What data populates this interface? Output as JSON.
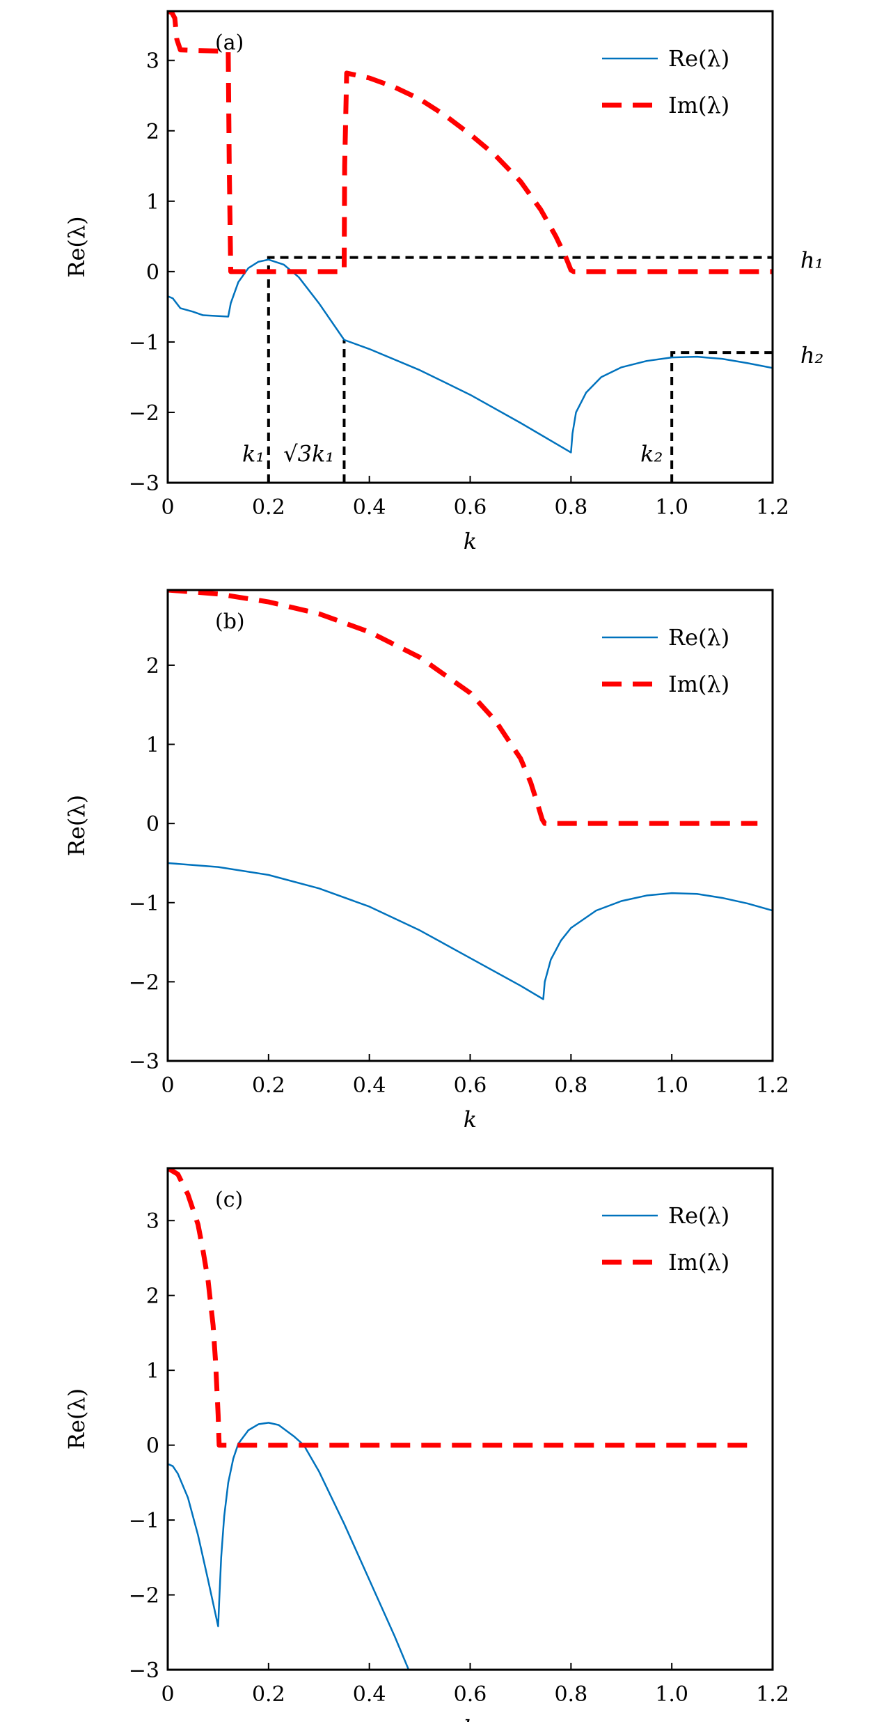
{
  "colors": {
    "re": "#0072bd",
    "im": "#ff0000",
    "guide": "#000000"
  },
  "chart_data": [
    {
      "type": "line",
      "panel_label": "(a)",
      "xlabel": "k",
      "ylabel": "Re(λ)",
      "xlim": [
        0,
        1.2
      ],
      "ylim": [
        -3,
        3.7
      ],
      "xticks": [
        "0",
        "0.2",
        "0.4",
        "0.6",
        "0.8",
        "1.0",
        "1.2"
      ],
      "yticks": [
        "−3",
        "−2",
        "−1",
        "0",
        "1",
        "2",
        "3"
      ],
      "legend": "top-right",
      "series": [
        {
          "name": "Re(λ)",
          "style": "solid",
          "x": [
            0,
            0.01,
            0.025,
            0.035,
            0.05,
            0.07,
            0.12,
            0.125,
            0.14,
            0.16,
            0.18,
            0.2,
            0.23,
            0.26,
            0.3,
            0.35,
            0.4,
            0.5,
            0.6,
            0.7,
            0.8,
            0.803,
            0.81,
            0.83,
            0.86,
            0.9,
            0.95,
            1.0,
            1.05,
            1.1,
            1.15,
            1.2
          ],
          "y": [
            -0.35,
            -0.38,
            -0.52,
            -0.54,
            -0.57,
            -0.62,
            -0.64,
            -0.45,
            -0.15,
            0.05,
            0.14,
            0.17,
            0.1,
            -0.08,
            -0.45,
            -0.97,
            -1.1,
            -1.4,
            -1.75,
            -2.15,
            -2.57,
            -2.3,
            -2.0,
            -1.72,
            -1.5,
            -1.36,
            -1.27,
            -1.22,
            -1.21,
            -1.24,
            -1.3,
            -1.37
          ]
        },
        {
          "name": "Im(λ)",
          "style": "dashed",
          "x": [
            0,
            0.008,
            0.014,
            0.018,
            0.025,
            0.06,
            0.12,
            0.122,
            0.125,
            0.16,
            0.35,
            0.351,
            0.355,
            0.4,
            0.45,
            0.5,
            0.55,
            0.6,
            0.65,
            0.7,
            0.74,
            0.77,
            0.79,
            0.8,
            0.805,
            1.2
          ],
          "y": [
            3.7,
            3.68,
            3.6,
            3.3,
            3.15,
            3.14,
            3.13,
            1.5,
            0,
            0,
            0,
            1.5,
            2.82,
            2.75,
            2.62,
            2.45,
            2.22,
            1.95,
            1.65,
            1.28,
            0.88,
            0.5,
            0.2,
            0.02,
            0,
            0
          ]
        }
      ],
      "guides": [
        {
          "x": [
            0.2,
            0.2,
            1.2
          ],
          "y": [
            -3,
            0.2,
            0.2
          ]
        },
        {
          "x": [
            0.35,
            0.35
          ],
          "y": [
            -3,
            -0.97
          ]
        },
        {
          "x": [
            1.0,
            1.0,
            1.2
          ],
          "y": [
            -3,
            -1.15,
            -1.15
          ]
        }
      ],
      "annotations": [
        {
          "text": "k₁",
          "x": 0.17,
          "y": -2.6
        },
        {
          "text": "√3k₁",
          "x": 0.28,
          "y": -2.6
        },
        {
          "text": "k₂",
          "x": 0.96,
          "y": -2.6
        },
        {
          "text": "h₁",
          "x": 1.255,
          "y": 0.15
        },
        {
          "text": "h₂",
          "x": 1.255,
          "y": -1.2
        }
      ]
    },
    {
      "type": "line",
      "panel_label": "(b)",
      "xlabel": "k",
      "ylabel": "Re(λ)",
      "xlim": [
        0,
        1.2
      ],
      "ylim": [
        -3,
        2.95
      ],
      "xticks": [
        "0",
        "0.2",
        "0.4",
        "0.6",
        "0.8",
        "1.0",
        "1.2"
      ],
      "yticks": [
        "−3",
        "−2",
        "−1",
        "0",
        "1",
        "2"
      ],
      "legend": "top-right",
      "series": [
        {
          "name": "Re(λ)",
          "style": "solid",
          "x": [
            0,
            0.1,
            0.2,
            0.3,
            0.4,
            0.5,
            0.6,
            0.7,
            0.745,
            0.748,
            0.76,
            0.78,
            0.8,
            0.85,
            0.9,
            0.95,
            1.0,
            1.05,
            1.1,
            1.15,
            1.2
          ],
          "y": [
            -0.5,
            -0.55,
            -0.65,
            -0.82,
            -1.05,
            -1.35,
            -1.7,
            -2.05,
            -2.22,
            -2.0,
            -1.72,
            -1.48,
            -1.32,
            -1.1,
            -0.98,
            -0.91,
            -0.88,
            -0.89,
            -0.94,
            -1.01,
            -1.1
          ]
        },
        {
          "name": "Im(λ)",
          "style": "dashed",
          "x": [
            0,
            0.1,
            0.2,
            0.3,
            0.4,
            0.5,
            0.6,
            0.65,
            0.7,
            0.72,
            0.735,
            0.743,
            0.748,
            1.17
          ],
          "y": [
            2.95,
            2.9,
            2.8,
            2.65,
            2.42,
            2.1,
            1.65,
            1.3,
            0.82,
            0.52,
            0.22,
            0.05,
            0,
            0
          ]
        }
      ]
    },
    {
      "type": "line",
      "panel_label": "(c)",
      "xlabel": "k",
      "ylabel": "Re(λ)",
      "xlim": [
        0,
        1.2
      ],
      "ylim": [
        -3,
        3.7
      ],
      "xticks": [
        "0",
        "0.2",
        "0.4",
        "0.6",
        "0.8",
        "1.0",
        "1.2"
      ],
      "yticks": [
        "−3",
        "−2",
        "−1",
        "0",
        "1",
        "2",
        "3"
      ],
      "legend": "top-right",
      "series": [
        {
          "name": "Re(λ)",
          "style": "solid",
          "x": [
            0,
            0.01,
            0.02,
            0.04,
            0.06,
            0.08,
            0.1,
            0.102,
            0.106,
            0.112,
            0.12,
            0.13,
            0.14,
            0.16,
            0.18,
            0.2,
            0.22,
            0.25,
            0.27,
            0.3,
            0.35,
            0.4,
            0.45,
            0.478
          ],
          "y": [
            -0.25,
            -0.28,
            -0.38,
            -0.7,
            -1.2,
            -1.8,
            -2.42,
            -2.1,
            -1.5,
            -0.95,
            -0.5,
            -0.18,
            0.02,
            0.2,
            0.28,
            0.3,
            0.27,
            0.12,
            0.0,
            -0.35,
            -1.05,
            -1.8,
            -2.55,
            -3.0
          ]
        },
        {
          "name": "Im(λ)",
          "style": "dashed",
          "x": [
            0,
            0.02,
            0.04,
            0.06,
            0.07,
            0.08,
            0.09,
            0.095,
            0.1,
            0.102,
            0.14,
            1.16
          ],
          "y": [
            3.7,
            3.62,
            3.35,
            2.95,
            2.6,
            2.2,
            1.6,
            1.1,
            0.4,
            0,
            0,
            0
          ]
        }
      ]
    }
  ]
}
